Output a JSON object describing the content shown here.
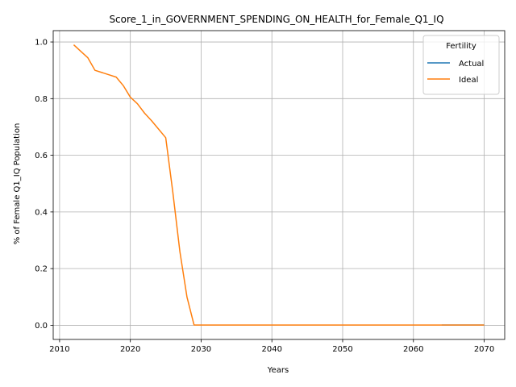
{
  "chart_data": {
    "type": "line",
    "title": "Score_1_in_GOVERNMENT_SPENDING_ON_HEALTH_for_Female_Q1_IQ",
    "xlabel": "Years",
    "ylabel": "% of Female Q1_IQ Population",
    "xlim": [
      2009.1,
      2072.9
    ],
    "ylim": [
      -0.05,
      1.04
    ],
    "xticks": [
      2010,
      2020,
      2030,
      2040,
      2050,
      2060,
      2070
    ],
    "xtick_labels": [
      "2010",
      "2020",
      "2030",
      "2040",
      "2050",
      "2060",
      "2070"
    ],
    "yticks": [
      0.0,
      0.2,
      0.4,
      0.6,
      0.8,
      1.0
    ],
    "ytick_labels": [
      "0.0",
      "0.2",
      "0.4",
      "0.6",
      "0.8",
      "1.0"
    ],
    "grid": true,
    "legend": {
      "title": "Fertility",
      "placement": "top-right"
    },
    "series": [
      {
        "name": "Actual",
        "color": "#1f77b4",
        "x": [
          2064,
          2065,
          2066,
          2067,
          2068,
          2069,
          2070
        ],
        "y": [
          0.001,
          0.001,
          0.001,
          0.001,
          0.001,
          0.001,
          0.001
        ]
      },
      {
        "name": "Ideal",
        "color": "#ff7f0e",
        "x": [
          2012,
          2013,
          2014,
          2015,
          2016,
          2017,
          2018,
          2019,
          2020,
          2021,
          2022,
          2023,
          2024,
          2025,
          2026,
          2027,
          2028,
          2029,
          2030,
          2035,
          2040,
          2045,
          2050,
          2055,
          2060,
          2064,
          2065,
          2066,
          2067,
          2068,
          2069,
          2070
        ],
        "y": [
          0.99,
          0.967,
          0.944,
          0.9,
          0.892,
          0.884,
          0.876,
          0.846,
          0.805,
          0.782,
          0.749,
          0.722,
          0.692,
          0.662,
          0.47,
          0.26,
          0.1,
          0.001,
          0.001,
          0.001,
          0.001,
          0.001,
          0.001,
          0.001,
          0.001,
          0.001,
          0.001,
          0.001,
          0.001,
          0.001,
          0.001,
          0.001
        ]
      }
    ]
  }
}
